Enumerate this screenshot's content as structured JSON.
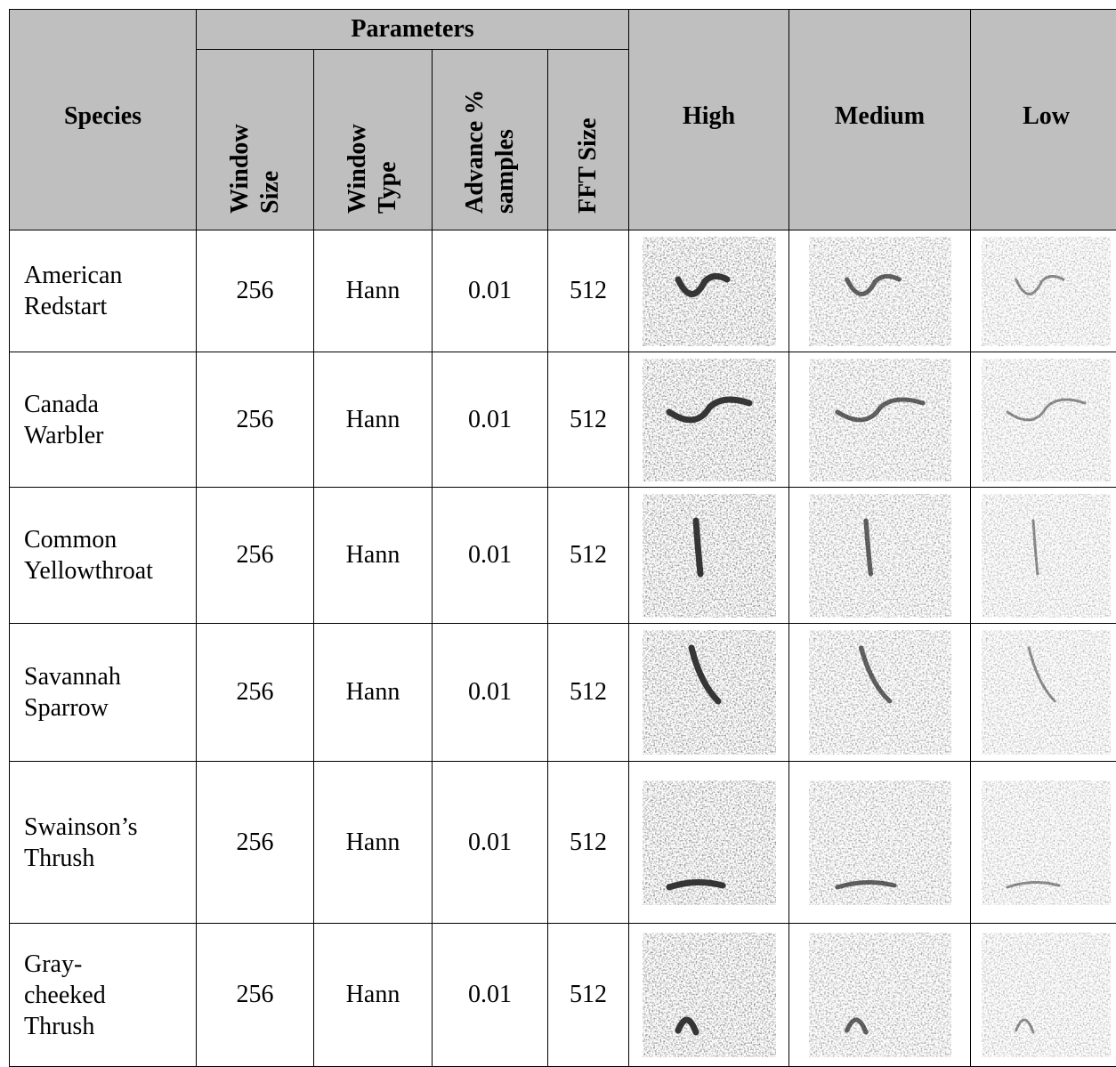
{
  "table": {
    "header": {
      "species": "Species",
      "parameters": "Parameters",
      "params": [
        "Window Size",
        "Window Type",
        "Advance % samples",
        "FFT Size"
      ],
      "levels": [
        "High",
        "Medium",
        "Low"
      ]
    },
    "rows": [
      {
        "species": "American\nRedstart",
        "window_size": 256,
        "window_type": "Hann",
        "advance": 0.01,
        "fft_size": 512
      },
      {
        "species": "Canada\nWarbler",
        "window_size": 256,
        "window_type": "Hann",
        "advance": 0.01,
        "fft_size": 512
      },
      {
        "species": "Common\nYellowthroat",
        "window_size": 256,
        "window_type": "Hann",
        "advance": 0.01,
        "fft_size": 512
      },
      {
        "species": "Savannah\nSparrow",
        "window_size": 256,
        "window_type": "Hann",
        "advance": 0.01,
        "fft_size": 512
      },
      {
        "species": "Swainson’s\nThrush",
        "window_size": 256,
        "window_type": "Hann",
        "advance": 0.01,
        "fft_size": 512
      },
      {
        "species": "Gray-\ncheeked\nThrush",
        "window_size": 256,
        "window_type": "Hann",
        "advance": 0.01,
        "fft_size": 512
      }
    ]
  }
}
